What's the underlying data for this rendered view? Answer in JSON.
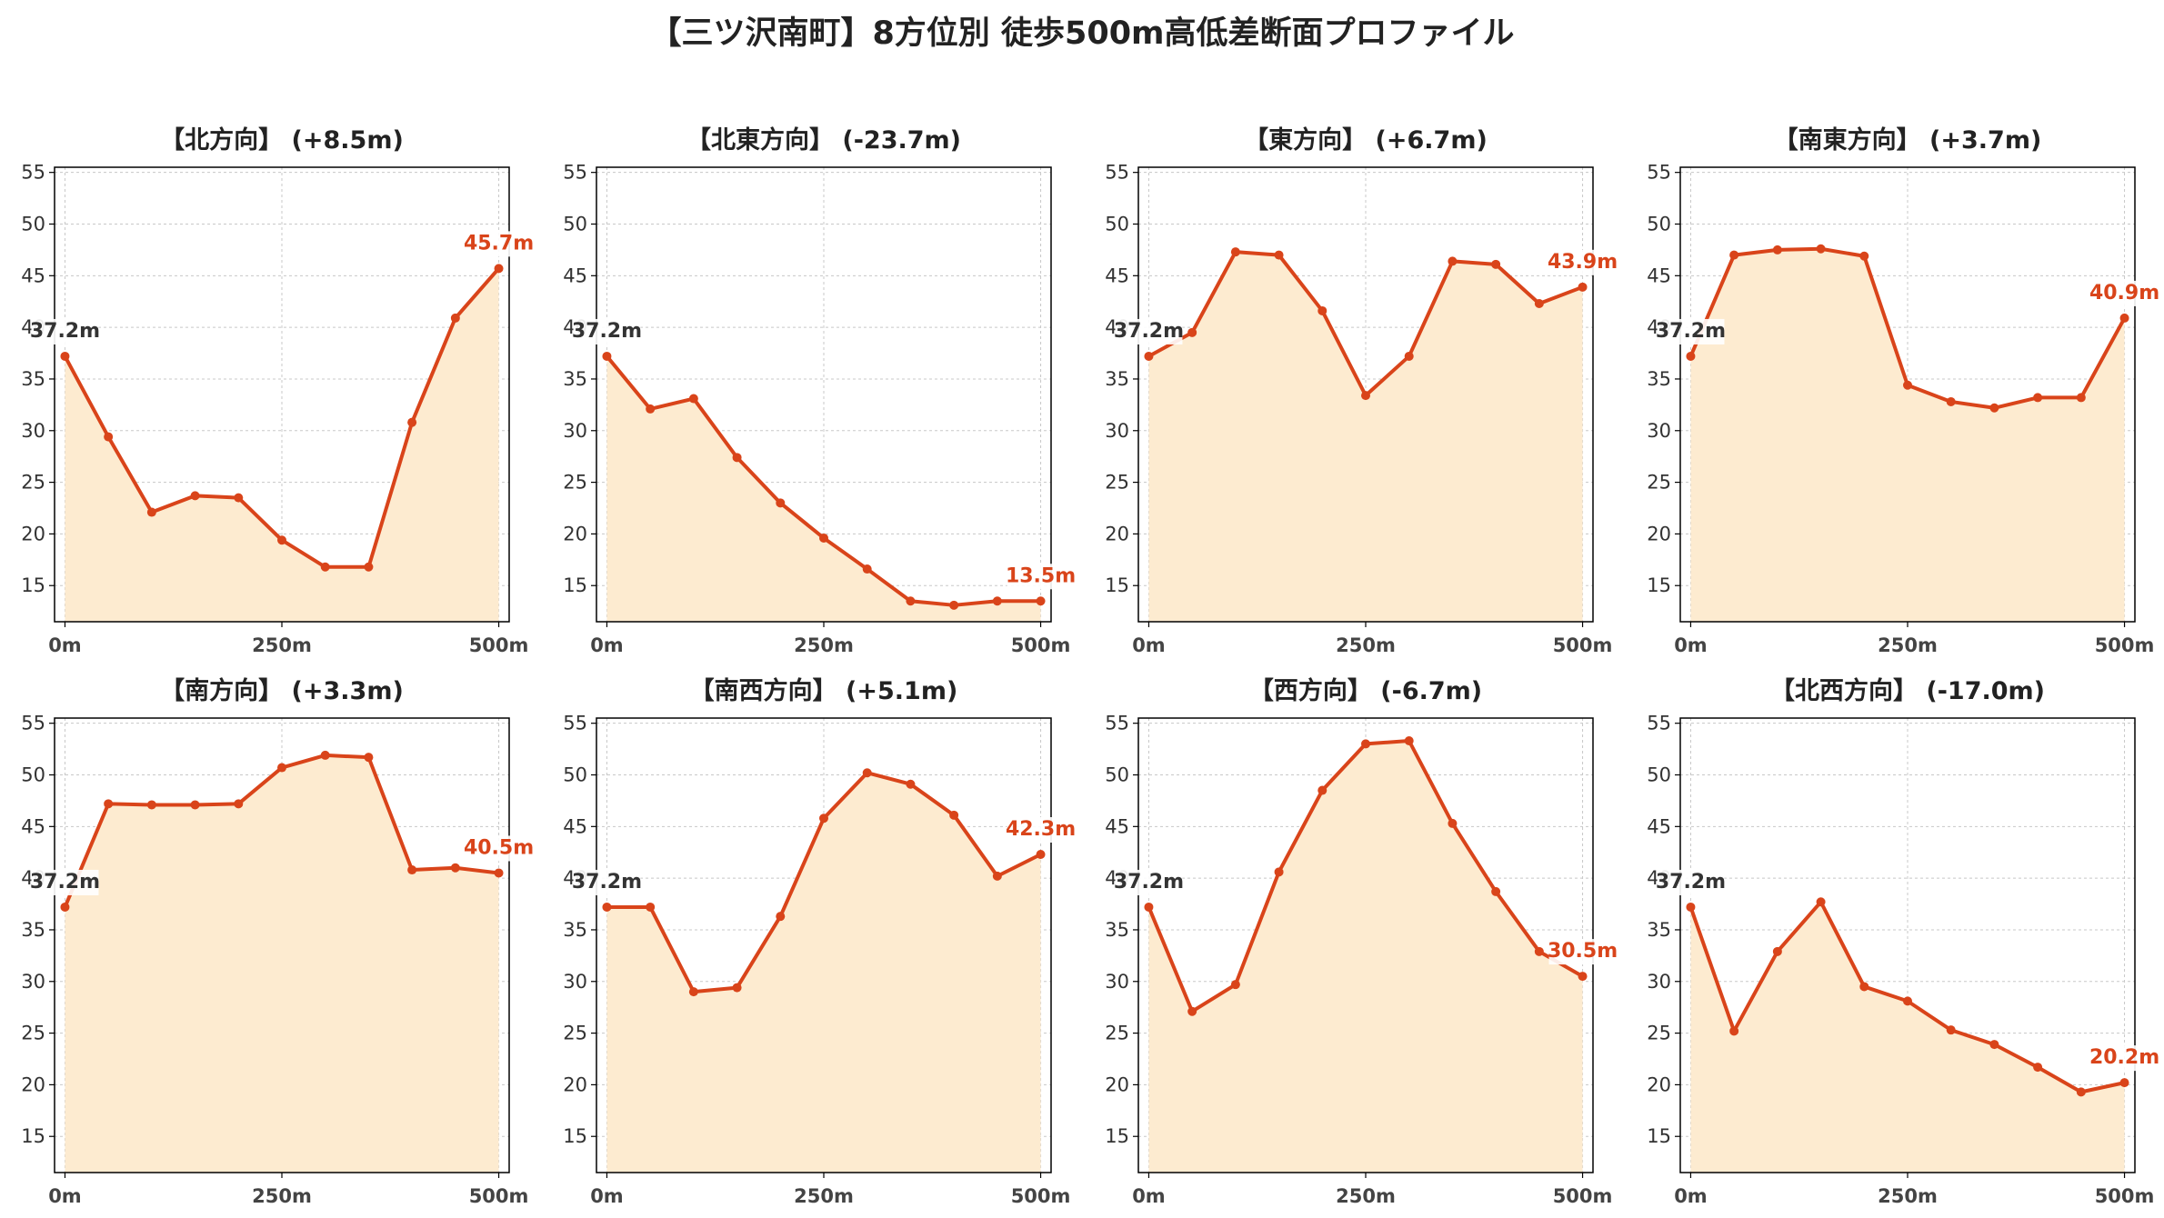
{
  "title": "【三ツ沢南町】8方位別 徒歩500m高低差断面プロファイル",
  "colors": {
    "line": "#d9441a",
    "fill": "#fdebd0",
    "grid": "#c8c8c8",
    "start_label": "#333333",
    "end_label": "#d9441a"
  },
  "chart_data": [
    {
      "type": "area",
      "title": "【北方向】 (+8.5m)",
      "x": [
        0,
        50,
        100,
        150,
        200,
        250,
        300,
        350,
        400,
        450,
        500
      ],
      "y": [
        37.2,
        29.4,
        22.1,
        23.7,
        23.5,
        19.4,
        16.8,
        16.8,
        30.8,
        40.9,
        45.7
      ],
      "start_label": "37.2m",
      "end_label": "45.7m",
      "xticks": [
        0,
        250,
        500
      ],
      "xtick_labels": [
        "0m",
        "250m",
        "500m"
      ],
      "yticks": [
        15,
        20,
        25,
        30,
        35,
        40,
        45,
        50,
        55
      ],
      "ylim": [
        11.5,
        55.5
      ],
      "xlim": [
        -12,
        512
      ],
      "grid": true
    },
    {
      "type": "area",
      "title": "【北東方向】 (-23.7m)",
      "x": [
        0,
        50,
        100,
        150,
        200,
        250,
        300,
        350,
        400,
        450,
        500
      ],
      "y": [
        37.2,
        32.1,
        33.1,
        27.4,
        23.0,
        19.6,
        16.6,
        13.5,
        13.1,
        13.5,
        13.5
      ],
      "start_label": "37.2m",
      "end_label": "13.5m",
      "xticks": [
        0,
        250,
        500
      ],
      "xtick_labels": [
        "0m",
        "250m",
        "500m"
      ],
      "yticks": [
        15,
        20,
        25,
        30,
        35,
        40,
        45,
        50,
        55
      ],
      "ylim": [
        11.5,
        55.5
      ],
      "xlim": [
        -12,
        512
      ],
      "grid": true
    },
    {
      "type": "area",
      "title": "【東方向】 (+6.7m)",
      "x": [
        0,
        50,
        100,
        150,
        200,
        250,
        300,
        350,
        400,
        450,
        500
      ],
      "y": [
        37.2,
        39.5,
        47.3,
        47.0,
        41.6,
        33.4,
        37.2,
        46.4,
        46.1,
        42.3,
        43.9
      ],
      "start_label": "37.2m",
      "end_label": "43.9m",
      "xticks": [
        0,
        250,
        500
      ],
      "xtick_labels": [
        "0m",
        "250m",
        "500m"
      ],
      "yticks": [
        15,
        20,
        25,
        30,
        35,
        40,
        45,
        50,
        55
      ],
      "ylim": [
        11.5,
        55.5
      ],
      "xlim": [
        -12,
        512
      ],
      "grid": true
    },
    {
      "type": "area",
      "title": "【南東方向】 (+3.7m)",
      "x": [
        0,
        50,
        100,
        150,
        200,
        250,
        300,
        350,
        400,
        450,
        500
      ],
      "y": [
        37.2,
        47.0,
        47.5,
        47.6,
        46.9,
        34.4,
        32.8,
        32.2,
        33.2,
        33.2,
        40.9
      ],
      "start_label": "37.2m",
      "end_label": "40.9m",
      "xticks": [
        0,
        250,
        500
      ],
      "xtick_labels": [
        "0m",
        "250m",
        "500m"
      ],
      "yticks": [
        15,
        20,
        25,
        30,
        35,
        40,
        45,
        50,
        55
      ],
      "ylim": [
        11.5,
        55.5
      ],
      "xlim": [
        -12,
        512
      ],
      "grid": true
    },
    {
      "type": "area",
      "title": "【南方向】 (+3.3m)",
      "x": [
        0,
        50,
        100,
        150,
        200,
        250,
        300,
        350,
        400,
        450,
        500
      ],
      "y": [
        37.2,
        47.2,
        47.1,
        47.1,
        47.2,
        50.7,
        51.9,
        51.7,
        40.8,
        41.0,
        40.5
      ],
      "start_label": "37.2m",
      "end_label": "40.5m",
      "xticks": [
        0,
        250,
        500
      ],
      "xtick_labels": [
        "0m",
        "250m",
        "500m"
      ],
      "yticks": [
        15,
        20,
        25,
        30,
        35,
        40,
        45,
        50,
        55
      ],
      "ylim": [
        11.5,
        55.5
      ],
      "xlim": [
        -12,
        512
      ],
      "grid": true
    },
    {
      "type": "area",
      "title": "【南西方向】 (+5.1m)",
      "x": [
        0,
        50,
        100,
        150,
        200,
        250,
        300,
        350,
        400,
        450,
        500
      ],
      "y": [
        37.2,
        37.2,
        29.0,
        29.4,
        36.3,
        45.8,
        50.2,
        49.1,
        46.1,
        40.2,
        42.3
      ],
      "start_label": "37.2m",
      "end_label": "42.3m",
      "xticks": [
        0,
        250,
        500
      ],
      "xtick_labels": [
        "0m",
        "250m",
        "500m"
      ],
      "yticks": [
        15,
        20,
        25,
        30,
        35,
        40,
        45,
        50,
        55
      ],
      "ylim": [
        11.5,
        55.5
      ],
      "xlim": [
        -12,
        512
      ],
      "grid": true
    },
    {
      "type": "area",
      "title": "【西方向】 (-6.7m)",
      "x": [
        0,
        50,
        100,
        150,
        200,
        250,
        300,
        350,
        400,
        450,
        500
      ],
      "y": [
        37.2,
        27.1,
        29.7,
        40.6,
        48.5,
        53.0,
        53.3,
        45.3,
        38.7,
        32.9,
        30.5
      ],
      "start_label": "37.2m",
      "end_label": "30.5m",
      "xticks": [
        0,
        250,
        500
      ],
      "xtick_labels": [
        "0m",
        "250m",
        "500m"
      ],
      "yticks": [
        15,
        20,
        25,
        30,
        35,
        40,
        45,
        50,
        55
      ],
      "ylim": [
        11.5,
        55.5
      ],
      "xlim": [
        -12,
        512
      ],
      "grid": true
    },
    {
      "type": "area",
      "title": "【北西方向】 (-17.0m)",
      "x": [
        0,
        50,
        100,
        150,
        200,
        250,
        300,
        350,
        400,
        450,
        500
      ],
      "y": [
        37.2,
        25.2,
        32.9,
        37.7,
        29.5,
        28.1,
        25.3,
        23.9,
        21.7,
        19.3,
        20.2
      ],
      "start_label": "37.2m",
      "end_label": "20.2m",
      "xticks": [
        0,
        250,
        500
      ],
      "xtick_labels": [
        "0m",
        "250m",
        "500m"
      ],
      "yticks": [
        15,
        20,
        25,
        30,
        35,
        40,
        45,
        50,
        55
      ],
      "ylim": [
        11.5,
        55.5
      ],
      "xlim": [
        -12,
        512
      ],
      "grid": true
    }
  ]
}
